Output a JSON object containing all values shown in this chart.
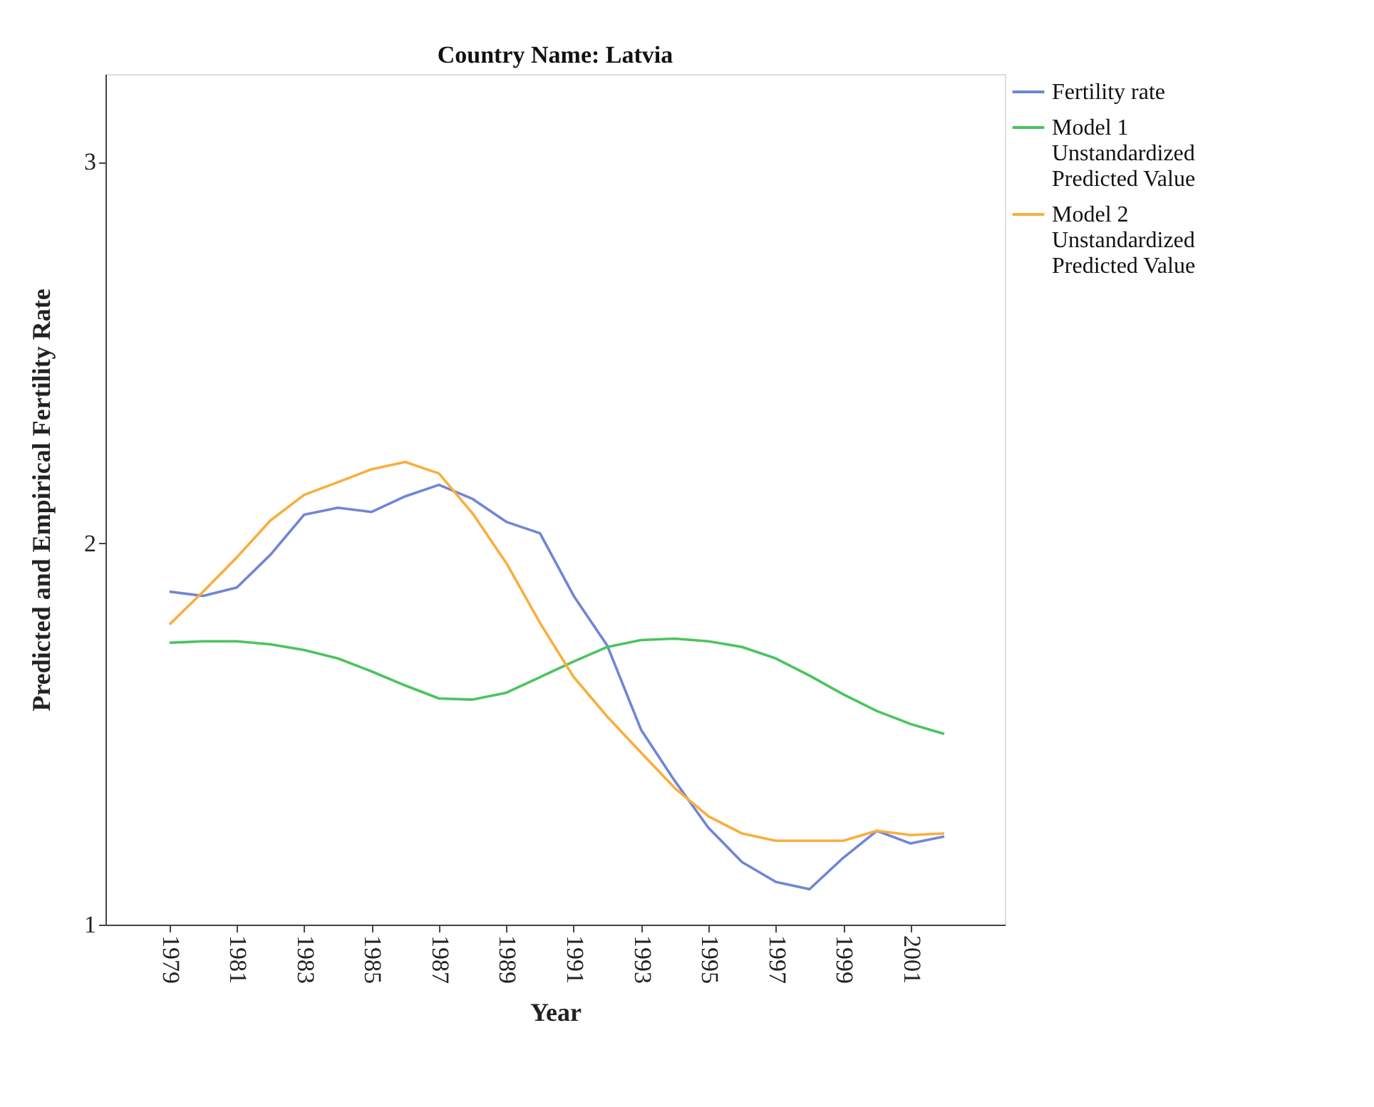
{
  "chart_data": {
    "type": "line",
    "title": "Country Name: Latvia",
    "xlabel": "Year",
    "ylabel": "Predicted and Empirical Fertility Rate",
    "x": [
      1979,
      1980,
      1981,
      1982,
      1983,
      1984,
      1985,
      1986,
      1987,
      1988,
      1989,
      1990,
      1991,
      1992,
      1993,
      1994,
      1995,
      1996,
      1997,
      1998,
      1999,
      2000,
      2001,
      2002
    ],
    "xlim": [
      1977.1,
      2003.8
    ],
    "xticks": [
      1979,
      1981,
      1983,
      1985,
      1987,
      1989,
      1991,
      1993,
      1995,
      1997,
      1999,
      2001
    ],
    "ylim": [
      1,
      3.23
    ],
    "yticks": [
      1,
      2,
      3
    ],
    "series": [
      {
        "name": "Fertility rate",
        "color": "#6f86d6",
        "values": [
          1.873,
          1.862,
          1.884,
          1.97,
          2.075,
          2.093,
          2.082,
          2.123,
          2.153,
          2.116,
          2.056,
          2.026,
          1.862,
          1.731,
          1.511,
          1.377,
          1.254,
          1.164,
          1.112,
          1.093,
          1.175,
          1.246,
          1.213,
          1.231
        ]
      },
      {
        "name": "Model 1 Unstandardized Predicted Value",
        "color": "#4bc45e",
        "values": [
          1.739,
          1.743,
          1.743,
          1.735,
          1.72,
          1.698,
          1.664,
          1.627,
          1.593,
          1.59,
          1.608,
          1.649,
          1.69,
          1.728,
          1.746,
          1.75,
          1.743,
          1.728,
          1.698,
          1.653,
          1.604,
          1.56,
          1.526,
          1.5
        ]
      },
      {
        "name": "Model 2 Unstandardized Predicted Value",
        "color": "#f9ae3d",
        "values": [
          1.787,
          1.873,
          1.963,
          2.06,
          2.127,
          2.16,
          2.194,
          2.213,
          2.183,
          2.078,
          1.948,
          1.791,
          1.649,
          1.545,
          1.451,
          1.358,
          1.284,
          1.239,
          1.22,
          1.22,
          1.22,
          1.246,
          1.235,
          1.239
        ]
      }
    ],
    "grid": false,
    "legend": "top right",
    "marker": "none",
    "line_style": "solid"
  }
}
